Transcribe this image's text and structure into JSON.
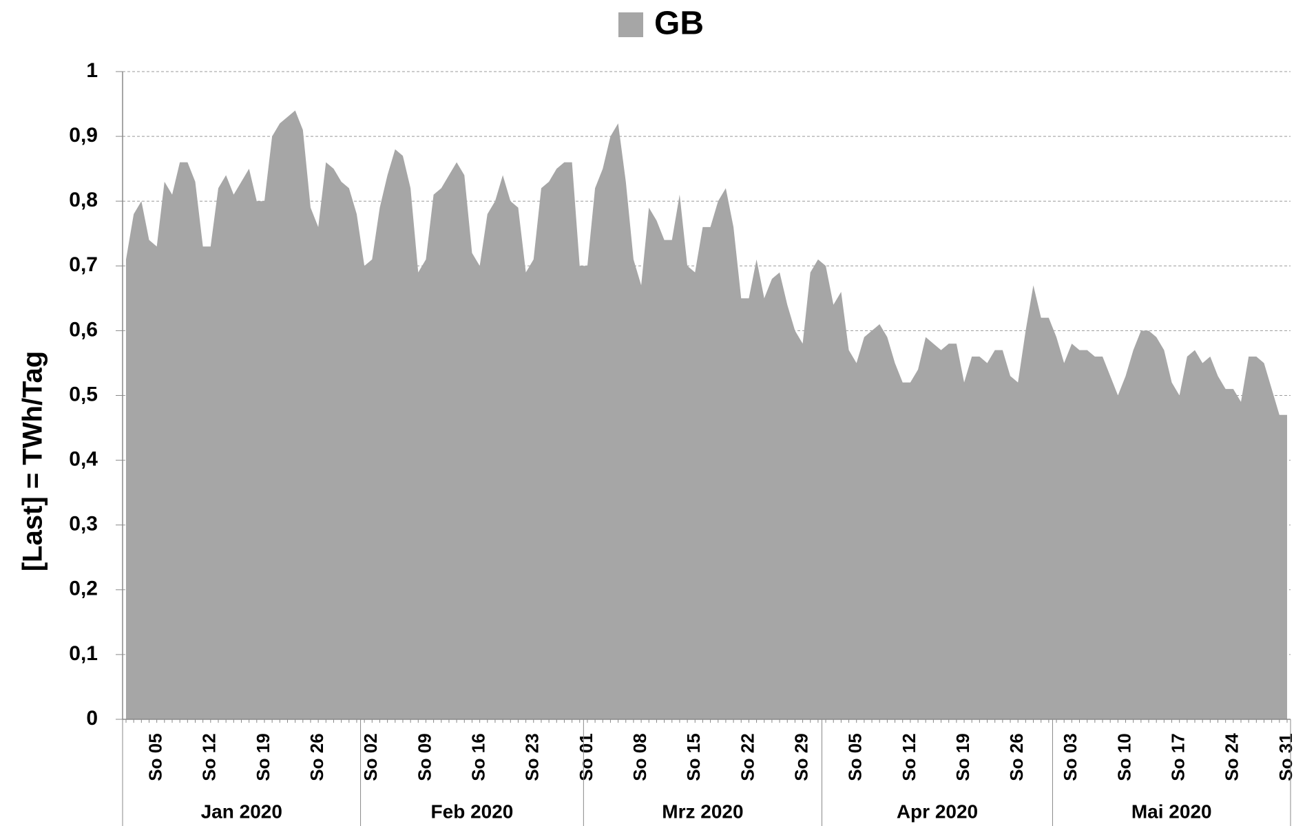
{
  "chart_data": {
    "type": "area",
    "legend_position": "top",
    "y_label": "[Last]  =  TWh/Tag",
    "ylim": [
      0,
      1
    ],
    "yticks": [
      0,
      {
        "value": 0.1,
        "label": "0,1"
      },
      {
        "value": 0.2,
        "label": "0,2"
      },
      {
        "value": 0.3,
        "label": "0,3"
      },
      {
        "value": 0.4,
        "label": "0,4"
      },
      {
        "value": 0.5,
        "label": "0,5"
      },
      {
        "value": 0.6,
        "label": "0,6"
      },
      {
        "value": 0.7,
        "label": "0,7"
      },
      {
        "value": 0.8,
        "label": "0,8"
      },
      {
        "value": 0.9,
        "label": "0,9"
      },
      1
    ],
    "grid": true,
    "months": [
      {
        "label": "Jan 2020",
        "days": 31
      },
      {
        "label": "Feb 2020",
        "days": 29
      },
      {
        "label": "Mrz 2020",
        "days": 31
      },
      {
        "label": "Apr 2020",
        "days": 30
      },
      {
        "label": "Mai 2020",
        "days": 31
      }
    ],
    "categories": [
      null,
      null,
      null,
      null,
      "So 05",
      null,
      null,
      null,
      null,
      null,
      null,
      "So 12",
      null,
      null,
      null,
      null,
      null,
      null,
      "So 19",
      null,
      null,
      null,
      null,
      null,
      null,
      "So 26",
      null,
      null,
      null,
      null,
      null,
      null,
      "So 02",
      null,
      null,
      null,
      null,
      null,
      null,
      "So 09",
      null,
      null,
      null,
      null,
      null,
      null,
      "So 16",
      null,
      null,
      null,
      null,
      null,
      null,
      "So 23",
      null,
      null,
      null,
      null,
      null,
      null,
      "So 01",
      null,
      null,
      null,
      null,
      null,
      null,
      "So 08",
      null,
      null,
      null,
      null,
      null,
      null,
      "So 15",
      null,
      null,
      null,
      null,
      null,
      null,
      "So 22",
      null,
      null,
      null,
      null,
      null,
      null,
      "So 29",
      null,
      null,
      null,
      null,
      null,
      null,
      "So 05",
      null,
      null,
      null,
      null,
      null,
      null,
      "So 12",
      null,
      null,
      null,
      null,
      null,
      null,
      "So 19",
      null,
      null,
      null,
      null,
      null,
      null,
      "So 26",
      null,
      null,
      null,
      null,
      null,
      null,
      "So 03",
      null,
      null,
      null,
      null,
      null,
      null,
      "So 10",
      null,
      null,
      null,
      null,
      null,
      null,
      "So 17",
      null,
      null,
      null,
      null,
      null,
      null,
      "So 24",
      null,
      null,
      null,
      null,
      null,
      null,
      "So 31"
    ],
    "series": [
      {
        "name": "GB",
        "color": "#a6a6a6",
        "values": [
          0.71,
          0.78,
          0.8,
          0.74,
          0.73,
          0.83,
          0.81,
          0.86,
          0.86,
          0.83,
          0.73,
          0.73,
          0.82,
          0.84,
          0.81,
          0.83,
          0.85,
          0.8,
          0.8,
          0.9,
          0.92,
          0.93,
          0.94,
          0.91,
          0.79,
          0.76,
          0.86,
          0.85,
          0.83,
          0.82,
          0.78,
          0.7,
          0.71,
          0.79,
          0.84,
          0.88,
          0.87,
          0.82,
          0.69,
          0.71,
          0.81,
          0.82,
          0.84,
          0.86,
          0.84,
          0.72,
          0.7,
          0.78,
          0.8,
          0.84,
          0.8,
          0.79,
          0.69,
          0.71,
          0.82,
          0.83,
          0.85,
          0.86,
          0.86,
          0.7,
          0.7,
          0.82,
          0.85,
          0.9,
          0.92,
          0.83,
          0.71,
          0.67,
          0.79,
          0.77,
          0.74,
          0.74,
          0.81,
          0.7,
          0.69,
          0.76,
          0.76,
          0.8,
          0.82,
          0.76,
          0.65,
          0.65,
          0.71,
          0.65,
          0.68,
          0.69,
          0.64,
          0.6,
          0.58,
          0.69,
          0.71,
          0.7,
          0.64,
          0.66,
          0.57,
          0.55,
          0.59,
          0.6,
          0.61,
          0.59,
          0.55,
          0.52,
          0.52,
          0.54,
          0.59,
          0.58,
          0.57,
          0.58,
          0.58,
          0.52,
          0.56,
          0.56,
          0.55,
          0.57,
          0.57,
          0.53,
          0.52,
          0.6,
          0.67,
          0.62,
          0.62,
          0.59,
          0.55,
          0.58,
          0.57,
          0.57,
          0.56,
          0.56,
          0.53,
          0.5,
          0.53,
          0.57,
          0.6,
          0.6,
          0.59,
          0.57,
          0.52,
          0.5,
          0.56,
          0.57,
          0.55,
          0.56,
          0.53,
          0.51,
          0.51,
          0.49,
          0.56,
          0.56,
          0.55,
          0.51,
          0.47,
          0.47
        ]
      }
    ]
  }
}
